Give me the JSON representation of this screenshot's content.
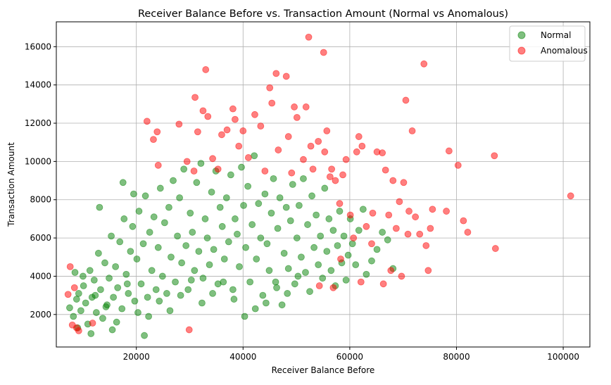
{
  "chart_data": {
    "type": "scatter",
    "title": "Receiver Balance Before vs. Transaction Amount (Normal vs Anomalous)",
    "xlabel": "Receiver Balance Before",
    "ylabel": "Transaction Amount",
    "xlim": [
      5000,
      105000
    ],
    "ylim": [
      300,
      17300
    ],
    "xticks": [
      20000,
      40000,
      60000,
      80000,
      100000
    ],
    "yticks": [
      2000,
      4000,
      6000,
      8000,
      10000,
      12000,
      14000,
      16000
    ],
    "grid": true,
    "legend_position": "top-right",
    "series": [
      {
        "name": "Normal",
        "color": "#008000",
        "opacity": 0.5,
        "points": [
          [
            7500,
            2350
          ],
          [
            8200,
            1900
          ],
          [
            8800,
            2800
          ],
          [
            9200,
            3100
          ],
          [
            9600,
            2200
          ],
          [
            10100,
            3500
          ],
          [
            10500,
            2600
          ],
          [
            10900,
            1500
          ],
          [
            11300,
            4300
          ],
          [
            11700,
            2900
          ],
          [
            12100,
            3800
          ],
          [
            12500,
            2100
          ],
          [
            12900,
            5200
          ],
          [
            13300,
            3300
          ],
          [
            13700,
            1800
          ],
          [
            14100,
            4700
          ],
          [
            14500,
            2500
          ],
          [
            14900,
            3900
          ],
          [
            15300,
            6100
          ],
          [
            15700,
            2900
          ],
          [
            16100,
            4500
          ],
          [
            16500,
            3400
          ],
          [
            16900,
            5800
          ],
          [
            17300,
            2300
          ],
          [
            17700,
            7000
          ],
          [
            18100,
            4100
          ],
          [
            18500,
            3100
          ],
          [
            18900,
            5300
          ],
          [
            19300,
            6600
          ],
          [
            19700,
            2700
          ],
          [
            20100,
            4900
          ],
          [
            20500,
            7400
          ],
          [
            20900,
            3600
          ],
          [
            21300,
            5700
          ],
          [
            21700,
            8200
          ],
          [
            22100,
            2900
          ],
          [
            22500,
            6300
          ],
          [
            22900,
            4300
          ],
          [
            23300,
            7100
          ],
          [
            23700,
            3300
          ],
          [
            24100,
            5500
          ],
          [
            24500,
            8600
          ],
          [
            24900,
            4000
          ],
          [
            25300,
            6800
          ],
          [
            25700,
            3100
          ],
          [
            26100,
            7600
          ],
          [
            26500,
            5000
          ],
          [
            26900,
            9000
          ],
          [
            27300,
            3700
          ],
          [
            27700,
            6100
          ],
          [
            28100,
            8100
          ],
          [
            28500,
            4700
          ],
          [
            28900,
            9600
          ],
          [
            29300,
            5600
          ],
          [
            29700,
            3300
          ],
          [
            30100,
            7300
          ],
          [
            30500,
            6300
          ],
          [
            30900,
            4300
          ],
          [
            31300,
            8900
          ],
          [
            31700,
            5300
          ],
          [
            32100,
            9900
          ],
          [
            32500,
            3900
          ],
          [
            32900,
            7000
          ],
          [
            33300,
            6000
          ],
          [
            33700,
            4600
          ],
          [
            34100,
            8400
          ],
          [
            34500,
            5400
          ],
          [
            34900,
            9500
          ],
          [
            35300,
            3600
          ],
          [
            35700,
            7600
          ],
          [
            36100,
            6600
          ],
          [
            36500,
            4900
          ],
          [
            36900,
            8100
          ],
          [
            37300,
            5800
          ],
          [
            37700,
            9300
          ],
          [
            38100,
            3300
          ],
          [
            38500,
            7000
          ],
          [
            38900,
            6200
          ],
          [
            39300,
            4500
          ],
          [
            39700,
            9700
          ],
          [
            40100,
            7700
          ],
          [
            40500,
            5500
          ],
          [
            40900,
            8700
          ],
          [
            41300,
            3700
          ],
          [
            41700,
            6700
          ],
          [
            42100,
            10300
          ],
          [
            42500,
            4900
          ],
          [
            42900,
            7800
          ],
          [
            43300,
            6000
          ],
          [
            43700,
            3000
          ],
          [
            44100,
            8300
          ],
          [
            44500,
            5700
          ],
          [
            44900,
            4300
          ],
          [
            45300,
            7300
          ],
          [
            45700,
            9100
          ],
          [
            46100,
            3700
          ],
          [
            46500,
            6500
          ],
          [
            46900,
            8100
          ],
          [
            47300,
            2500
          ],
          [
            47700,
            5200
          ],
          [
            48100,
            7600
          ],
          [
            48500,
            4400
          ],
          [
            48900,
            6900
          ],
          [
            49300,
            8800
          ],
          [
            49700,
            3600
          ],
          [
            50100,
            6000
          ],
          [
            50500,
            7700
          ],
          [
            50900,
            5000
          ],
          [
            51300,
            9100
          ],
          [
            51700,
            4200
          ],
          [
            52100,
            6700
          ],
          [
            52500,
            3200
          ],
          [
            52900,
            8200
          ],
          [
            53300,
            5500
          ],
          [
            53700,
            7200
          ],
          [
            54100,
            4600
          ],
          [
            54500,
            6100
          ],
          [
            54900,
            3900
          ],
          [
            55300,
            8600
          ],
          [
            55700,
            5300
          ],
          [
            56100,
            7000
          ],
          [
            56500,
            4300
          ],
          [
            56900,
            6400
          ],
          [
            57300,
            3500
          ],
          [
            57700,
            5600
          ],
          [
            58100,
            7400
          ],
          [
            58500,
            4700
          ],
          [
            58900,
            6100
          ],
          [
            59300,
            3800
          ],
          [
            59700,
            5100
          ],
          [
            60100,
            7000
          ],
          [
            60500,
            5700
          ],
          [
            61100,
            4600
          ],
          [
            61700,
            6400
          ],
          [
            62500,
            7500
          ],
          [
            63100,
            4100
          ],
          [
            64100,
            4800
          ],
          [
            65100,
            5400
          ],
          [
            66100,
            6300
          ],
          [
            67100,
            5900
          ],
          [
            68100,
            4400
          ],
          [
            13100,
            7600
          ],
          [
            17500,
            8900
          ],
          [
            19500,
            8300
          ],
          [
            21500,
            900
          ],
          [
            15500,
            1200
          ],
          [
            11500,
            1000
          ],
          [
            10000,
            4000
          ],
          [
            9000,
            1300
          ],
          [
            8500,
            4200
          ],
          [
            12300,
            3000
          ],
          [
            14300,
            2400
          ],
          [
            16300,
            1600
          ],
          [
            18300,
            3600
          ],
          [
            20300,
            2100
          ],
          [
            22300,
            1900
          ],
          [
            24300,
            2700
          ],
          [
            26300,
            2200
          ],
          [
            28300,
            3000
          ],
          [
            30300,
            3800
          ],
          [
            32300,
            2600
          ],
          [
            34300,
            3100
          ],
          [
            36300,
            3700
          ],
          [
            38300,
            2800
          ],
          [
            40300,
            1900
          ],
          [
            42300,
            2300
          ],
          [
            44300,
            2600
          ],
          [
            46300,
            3400
          ],
          [
            48300,
            3100
          ],
          [
            50300,
            4000
          ]
        ]
      },
      {
        "name": "Anomalous",
        "color": "#ff0000",
        "opacity": 0.5,
        "points": [
          [
            7200,
            3050
          ],
          [
            7600,
            4500
          ],
          [
            8000,
            1450
          ],
          [
            8400,
            3400
          ],
          [
            8800,
            1300
          ],
          [
            9200,
            1150
          ],
          [
            11800,
            1550
          ],
          [
            22000,
            12100
          ],
          [
            23200,
            11150
          ],
          [
            23900,
            11550
          ],
          [
            24100,
            9800
          ],
          [
            28000,
            11950
          ],
          [
            29500,
            10000
          ],
          [
            29900,
            1200
          ],
          [
            30800,
            9500
          ],
          [
            31000,
            13350
          ],
          [
            31500,
            11550
          ],
          [
            32500,
            12650
          ],
          [
            33000,
            14800
          ],
          [
            33400,
            12350
          ],
          [
            34300,
            10150
          ],
          [
            35300,
            9600
          ],
          [
            36000,
            11400
          ],
          [
            37000,
            11650
          ],
          [
            38100,
            12750
          ],
          [
            38500,
            12200
          ],
          [
            39200,
            10800
          ],
          [
            40000,
            11600
          ],
          [
            41000,
            10200
          ],
          [
            42200,
            12450
          ],
          [
            43300,
            11850
          ],
          [
            44100,
            9500
          ],
          [
            45000,
            13850
          ],
          [
            45400,
            13050
          ],
          [
            46200,
            14600
          ],
          [
            46600,
            10600
          ],
          [
            48100,
            14450
          ],
          [
            48500,
            11300
          ],
          [
            49100,
            9400
          ],
          [
            49600,
            12850
          ],
          [
            50100,
            12300
          ],
          [
            51300,
            10100
          ],
          [
            51800,
            12850
          ],
          [
            52300,
            16500
          ],
          [
            52700,
            10800
          ],
          [
            53100,
            9600
          ],
          [
            54100,
            11050
          ],
          [
            55100,
            15700
          ],
          [
            55300,
            10500
          ],
          [
            55700,
            11600
          ],
          [
            56300,
            9200
          ],
          [
            56600,
            9600
          ],
          [
            57300,
            9000
          ],
          [
            58100,
            7800
          ],
          [
            58700,
            9300
          ],
          [
            59300,
            10100
          ],
          [
            60100,
            7200
          ],
          [
            60700,
            6000
          ],
          [
            61300,
            10500
          ],
          [
            61700,
            11300
          ],
          [
            62300,
            10800
          ],
          [
            63100,
            6600
          ],
          [
            64300,
            7300
          ],
          [
            65100,
            10500
          ],
          [
            66100,
            10450
          ],
          [
            66700,
            9550
          ],
          [
            67300,
            7200
          ],
          [
            68100,
            9000
          ],
          [
            68700,
            6500
          ],
          [
            69300,
            7900
          ],
          [
            70100,
            8900
          ],
          [
            70500,
            13200
          ],
          [
            71100,
            7400
          ],
          [
            71700,
            11600
          ],
          [
            72300,
            7100
          ],
          [
            73100,
            6200
          ],
          [
            73900,
            15100
          ],
          [
            74300,
            5600
          ],
          [
            74700,
            4300
          ],
          [
            75100,
            6500
          ],
          [
            75500,
            7500
          ],
          [
            78100,
            7400
          ],
          [
            78600,
            10550
          ],
          [
            80300,
            9800
          ],
          [
            81300,
            6900
          ],
          [
            82100,
            6300
          ],
          [
            87100,
            10300
          ],
          [
            87300,
            5450
          ],
          [
            101400,
            8200
          ],
          [
            54300,
            3500
          ],
          [
            56900,
            3400
          ],
          [
            58300,
            4900
          ],
          [
            62100,
            3700
          ],
          [
            64100,
            5700
          ],
          [
            66300,
            3600
          ],
          [
            67700,
            4300
          ],
          [
            69700,
            4000
          ],
          [
            70900,
            6200
          ]
        ]
      }
    ]
  }
}
